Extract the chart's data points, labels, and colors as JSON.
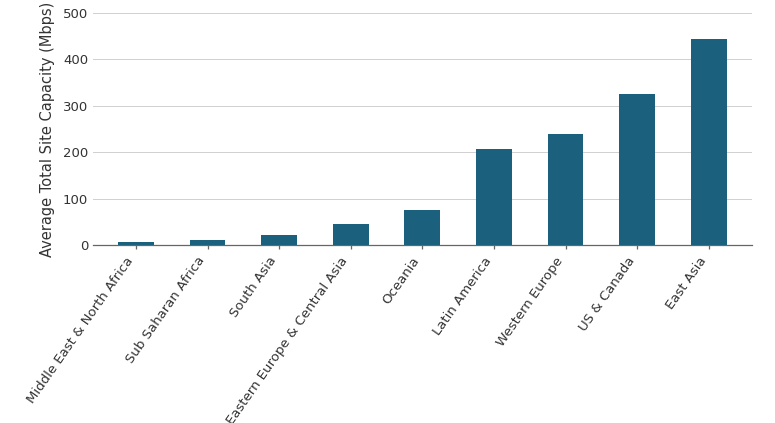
{
  "categories": [
    "Middle East & North Africa",
    "Sub Saharan Africa",
    "South Asia",
    "Eastern Europe & Central Asia",
    "Oceania",
    "Latin America",
    "Western Europe",
    "US & Canada",
    "East Asia"
  ],
  "values": [
    8,
    12,
    23,
    45,
    75,
    208,
    240,
    325,
    443
  ],
  "bar_color": "#1b607c",
  "ylabel": "Average Total Site Capacity (Mbps)",
  "ylim": [
    0,
    500
  ],
  "yticks": [
    0,
    100,
    200,
    300,
    400,
    500
  ],
  "background_color": "#ffffff",
  "grid_color": "#d0d0d0",
  "tick_label_fontsize": 9.5,
  "ylabel_fontsize": 10.5,
  "bar_width": 0.5,
  "label_rotation": 55
}
